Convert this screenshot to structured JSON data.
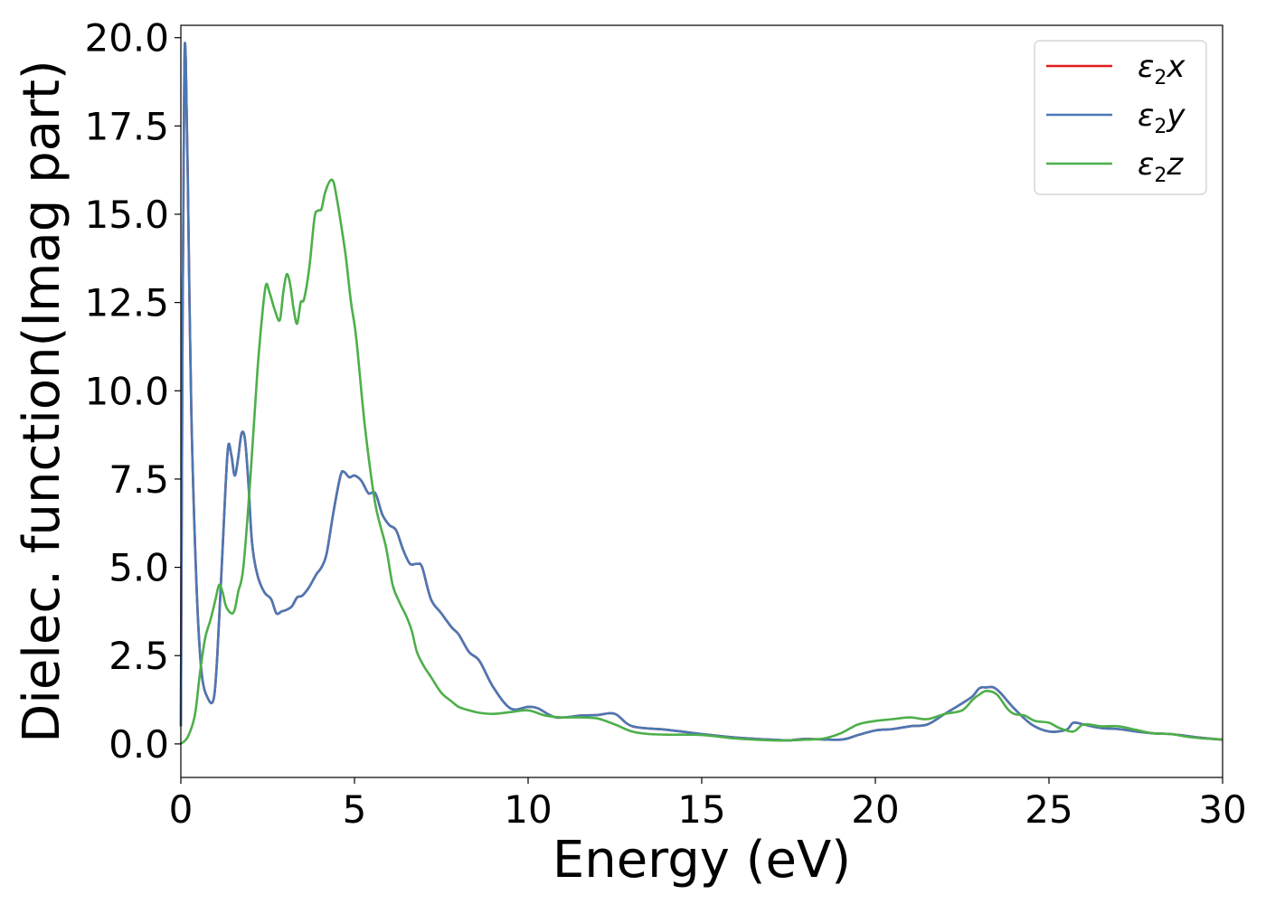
{
  "chart_data": {
    "type": "line",
    "xlabel": "Energy (eV)",
    "ylabel": "Dielec. function(Imag part)",
    "xlim": [
      0,
      30
    ],
    "ylim": [
      -0.95,
      20.35
    ],
    "xticks": [
      0,
      5,
      10,
      15,
      20,
      25,
      30
    ],
    "xtick_labels": [
      "0",
      "5",
      "10",
      "15",
      "20",
      "25",
      "30"
    ],
    "yticks": [
      0.0,
      2.5,
      5.0,
      7.5,
      10.0,
      12.5,
      15.0,
      17.5,
      20.0
    ],
    "ytick_labels": [
      "0.0",
      "2.5",
      "5.0",
      "7.5",
      "10.0",
      "12.5",
      "15.0",
      "17.5",
      "20.0"
    ],
    "grid": false,
    "legend_position": "top-right",
    "series": [
      {
        "name": "ε2x",
        "legend_symbol": "ε",
        "legend_sub": "2",
        "legend_var": "x",
        "color": "#e41a1c",
        "x": [
          0,
          0.05,
          0.1,
          0.14,
          0.2,
          0.3,
          0.45,
          0.6,
          0.8,
          0.95,
          1.05,
          1.2,
          1.35,
          1.45,
          1.55,
          1.65,
          1.75,
          1.85,
          1.95,
          2.05,
          2.2,
          2.4,
          2.6,
          2.75,
          2.9,
          3.05,
          3.2,
          3.35,
          3.5,
          3.7,
          3.9,
          4.05,
          4.2,
          4.4,
          4.6,
          4.7,
          4.85,
          5.0,
          5.2,
          5.4,
          5.6,
          5.8,
          6.0,
          6.2,
          6.4,
          6.6,
          6.8,
          6.95,
          7.2,
          7.5,
          7.8,
          8.0,
          8.3,
          8.6,
          9.0,
          9.5,
          10.0,
          10.3,
          10.8,
          11.5,
          12.0,
          12.5,
          13.0,
          14.0,
          15.0,
          16.0,
          17.0,
          17.5,
          18.0,
          19.0,
          19.5,
          20.0,
          20.5,
          21.0,
          21.5,
          22.0,
          22.5,
          22.8,
          23.0,
          23.2,
          23.4,
          23.6,
          24.0,
          24.5,
          25.0,
          25.5,
          25.7,
          26.0,
          26.5,
          27.0,
          27.5,
          28.0,
          28.5,
          29.0,
          29.5,
          30.0
        ],
        "y": [
          0.5,
          12.0,
          19.0,
          19.4,
          16.0,
          9.5,
          4.5,
          2.0,
          1.25,
          1.3,
          2.5,
          5.5,
          8.3,
          8.2,
          7.6,
          8.1,
          8.8,
          8.6,
          7.3,
          5.7,
          4.8,
          4.3,
          4.1,
          3.7,
          3.75,
          3.8,
          3.9,
          4.15,
          4.2,
          4.45,
          4.8,
          5.0,
          5.4,
          6.6,
          7.6,
          7.7,
          7.55,
          7.6,
          7.45,
          7.1,
          7.1,
          6.5,
          6.2,
          6.05,
          5.5,
          5.1,
          5.1,
          5.0,
          4.1,
          3.7,
          3.3,
          3.1,
          2.6,
          2.35,
          1.6,
          1.0,
          1.05,
          1.0,
          0.75,
          0.8,
          0.82,
          0.85,
          0.5,
          0.4,
          0.28,
          0.18,
          0.12,
          0.1,
          0.14,
          0.12,
          0.25,
          0.38,
          0.42,
          0.5,
          0.55,
          0.85,
          1.15,
          1.35,
          1.58,
          1.6,
          1.6,
          1.45,
          1.0,
          0.55,
          0.35,
          0.4,
          0.6,
          0.55,
          0.45,
          0.42,
          0.35,
          0.3,
          0.28,
          0.22,
          0.16,
          0.12
        ]
      },
      {
        "name": "ε2y",
        "legend_symbol": "ε",
        "legend_sub": "2",
        "legend_var": "y",
        "color": "#4a78b4",
        "x": [
          0,
          0.05,
          0.1,
          0.14,
          0.2,
          0.3,
          0.45,
          0.6,
          0.8,
          0.95,
          1.05,
          1.2,
          1.35,
          1.45,
          1.55,
          1.65,
          1.75,
          1.85,
          1.95,
          2.05,
          2.2,
          2.4,
          2.6,
          2.75,
          2.9,
          3.05,
          3.2,
          3.35,
          3.5,
          3.7,
          3.9,
          4.05,
          4.2,
          4.4,
          4.6,
          4.7,
          4.85,
          5.0,
          5.2,
          5.4,
          5.6,
          5.8,
          6.0,
          6.2,
          6.4,
          6.6,
          6.8,
          6.95,
          7.2,
          7.5,
          7.8,
          8.0,
          8.3,
          8.6,
          9.0,
          9.5,
          10.0,
          10.3,
          10.8,
          11.5,
          12.0,
          12.5,
          13.0,
          14.0,
          15.0,
          16.0,
          17.0,
          17.5,
          18.0,
          19.0,
          19.5,
          20.0,
          20.5,
          21.0,
          21.5,
          22.0,
          22.5,
          22.8,
          23.0,
          23.2,
          23.4,
          23.6,
          24.0,
          24.5,
          25.0,
          25.5,
          25.7,
          26.0,
          26.5,
          27.0,
          27.5,
          28.0,
          28.5,
          29.0,
          29.5,
          30.0
        ],
        "y": [
          0.5,
          12.0,
          19.0,
          19.4,
          16.0,
          9.5,
          4.5,
          2.0,
          1.25,
          1.3,
          2.5,
          5.5,
          8.3,
          8.2,
          7.6,
          8.1,
          8.8,
          8.6,
          7.3,
          5.7,
          4.8,
          4.3,
          4.1,
          3.7,
          3.75,
          3.8,
          3.9,
          4.15,
          4.2,
          4.45,
          4.8,
          5.0,
          5.4,
          6.6,
          7.6,
          7.7,
          7.55,
          7.6,
          7.45,
          7.1,
          7.1,
          6.5,
          6.2,
          6.05,
          5.5,
          5.1,
          5.1,
          5.0,
          4.1,
          3.7,
          3.3,
          3.1,
          2.6,
          2.35,
          1.6,
          1.0,
          1.05,
          1.0,
          0.75,
          0.8,
          0.82,
          0.85,
          0.5,
          0.4,
          0.28,
          0.18,
          0.12,
          0.1,
          0.14,
          0.12,
          0.25,
          0.38,
          0.42,
          0.5,
          0.55,
          0.85,
          1.15,
          1.35,
          1.58,
          1.6,
          1.6,
          1.45,
          1.0,
          0.55,
          0.35,
          0.4,
          0.6,
          0.55,
          0.45,
          0.42,
          0.35,
          0.3,
          0.28,
          0.22,
          0.16,
          0.12
        ]
      },
      {
        "name": "ε2z",
        "legend_symbol": "ε",
        "legend_sub": "2",
        "legend_var": "z",
        "color": "#4daf4a",
        "x": [
          0,
          0.2,
          0.4,
          0.55,
          0.7,
          0.85,
          1.0,
          1.1,
          1.2,
          1.3,
          1.45,
          1.55,
          1.65,
          1.8,
          2.0,
          2.2,
          2.35,
          2.45,
          2.55,
          2.7,
          2.85,
          2.95,
          3.05,
          3.15,
          3.25,
          3.35,
          3.45,
          3.55,
          3.7,
          3.85,
          3.95,
          4.05,
          4.15,
          4.3,
          4.4,
          4.5,
          4.6,
          4.75,
          4.9,
          5.05,
          5.3,
          5.6,
          5.9,
          6.1,
          6.3,
          6.5,
          6.65,
          6.8,
          7.0,
          7.2,
          7.5,
          7.8,
          8.0,
          8.3,
          8.6,
          9.0,
          9.5,
          10.0,
          10.5,
          11.0,
          11.5,
          12.0,
          12.5,
          13.0,
          13.5,
          14.0,
          15.0,
          16.0,
          17.0,
          17.5,
          18.0,
          18.5,
          19.0,
          19.5,
          20.0,
          20.5,
          21.0,
          21.5,
          22.0,
          22.5,
          22.8,
          23.0,
          23.2,
          23.5,
          23.8,
          24.0,
          24.3,
          24.6,
          25.0,
          25.3,
          25.7,
          26.0,
          26.5,
          27.0,
          27.5,
          28.0,
          28.5,
          29.0,
          29.5,
          30.0
        ],
        "y": [
          0.0,
          0.2,
          0.8,
          2.0,
          3.0,
          3.5,
          4.1,
          4.5,
          4.3,
          3.9,
          3.7,
          3.8,
          4.3,
          5.0,
          7.5,
          10.5,
          12.2,
          13.0,
          12.8,
          12.3,
          12.0,
          12.8,
          13.3,
          13.0,
          12.3,
          11.9,
          12.5,
          12.6,
          13.5,
          14.9,
          15.1,
          15.15,
          15.6,
          15.95,
          15.9,
          15.4,
          14.8,
          13.8,
          12.5,
          11.5,
          9.0,
          6.8,
          5.6,
          4.5,
          4.0,
          3.6,
          3.2,
          2.6,
          2.2,
          1.9,
          1.45,
          1.2,
          1.05,
          0.95,
          0.88,
          0.85,
          0.9,
          0.95,
          0.8,
          0.75,
          0.75,
          0.72,
          0.55,
          0.35,
          0.28,
          0.26,
          0.25,
          0.15,
          0.1,
          0.1,
          0.12,
          0.15,
          0.3,
          0.55,
          0.65,
          0.7,
          0.75,
          0.7,
          0.85,
          0.95,
          1.25,
          1.4,
          1.5,
          1.4,
          1.0,
          0.85,
          0.8,
          0.65,
          0.6,
          0.45,
          0.35,
          0.55,
          0.5,
          0.5,
          0.4,
          0.3,
          0.28,
          0.2,
          0.15,
          0.13
        ]
      }
    ]
  }
}
